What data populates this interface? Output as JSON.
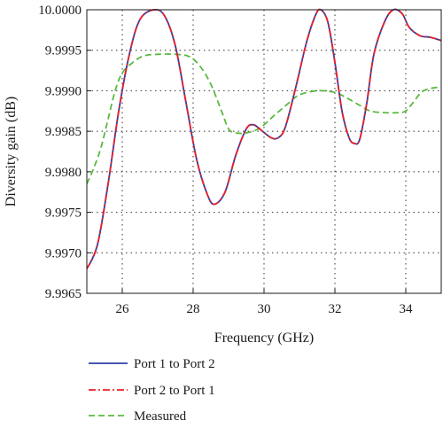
{
  "chart_data": {
    "type": "line",
    "xlabel": "Frequency (GHz)",
    "ylabel": "Diversity gain (dB)",
    "xlim": [
      25,
      35
    ],
    "ylim": [
      9.9965,
      10.0
    ],
    "x_ticks": [
      26,
      28,
      30,
      32,
      34
    ],
    "x_tick_labels": [
      "26",
      "28",
      "30",
      "32",
      "34"
    ],
    "y_ticks": [
      9.9965,
      9.997,
      9.9975,
      9.998,
      9.9985,
      9.999,
      9.9995,
      10.0
    ],
    "y_tick_labels": [
      "9.9965",
      "9.9970",
      "9.9975",
      "9.9980",
      "9.9985",
      "9.9990",
      "9.9995",
      "10.0000"
    ],
    "grid": "dotted",
    "legend_position": "below",
    "series": [
      {
        "name": "Port 1 to Port 2",
        "color": "#2b3fa6",
        "style": "solid",
        "points": [
          [
            25.0,
            9.9968
          ],
          [
            25.3,
            9.9971
          ],
          [
            25.6,
            9.99785
          ],
          [
            25.9,
            9.99875
          ],
          [
            26.2,
            9.99945
          ],
          [
            26.5,
            9.99988
          ],
          [
            26.9,
            10.0
          ],
          [
            27.2,
            9.99992
          ],
          [
            27.5,
            9.99955
          ],
          [
            27.8,
            9.99885
          ],
          [
            28.1,
            9.99815
          ],
          [
            28.4,
            9.99772
          ],
          [
            28.6,
            9.9976
          ],
          [
            28.9,
            9.99775
          ],
          [
            29.2,
            9.9982
          ],
          [
            29.5,
            9.99853
          ],
          [
            29.7,
            9.99858
          ],
          [
            29.9,
            9.99852
          ],
          [
            30.2,
            9.99842
          ],
          [
            30.4,
            9.99842
          ],
          [
            30.6,
            9.99855
          ],
          [
            30.9,
            9.99905
          ],
          [
            31.2,
            9.9996
          ],
          [
            31.45,
            9.99993
          ],
          [
            31.6,
            10.0
          ],
          [
            31.8,
            9.99985
          ],
          [
            32.0,
            9.99935
          ],
          [
            32.2,
            9.99875
          ],
          [
            32.4,
            9.99842
          ],
          [
            32.55,
            9.99835
          ],
          [
            32.7,
            9.9984
          ],
          [
            32.9,
            9.99885
          ],
          [
            33.1,
            9.99945
          ],
          [
            33.4,
            9.99985
          ],
          [
            33.65,
            10.0
          ],
          [
            33.9,
            9.99995
          ],
          [
            34.1,
            9.99978
          ],
          [
            34.4,
            9.99968
          ],
          [
            34.7,
            9.99966
          ],
          [
            35.0,
            9.99962
          ]
        ]
      },
      {
        "name": "Port 2 to Port 1",
        "color": "#e8202a",
        "style": "dash-dot",
        "points": [
          [
            25.0,
            9.9968
          ],
          [
            25.3,
            9.9971
          ],
          [
            25.6,
            9.99785
          ],
          [
            25.9,
            9.99875
          ],
          [
            26.2,
            9.99945
          ],
          [
            26.5,
            9.99988
          ],
          [
            26.9,
            10.0
          ],
          [
            27.2,
            9.99992
          ],
          [
            27.5,
            9.99955
          ],
          [
            27.8,
            9.99885
          ],
          [
            28.1,
            9.99815
          ],
          [
            28.4,
            9.99772
          ],
          [
            28.6,
            9.9976
          ],
          [
            28.9,
            9.99775
          ],
          [
            29.2,
            9.9982
          ],
          [
            29.5,
            9.99853
          ],
          [
            29.7,
            9.99858
          ],
          [
            29.9,
            9.99852
          ],
          [
            30.2,
            9.99842
          ],
          [
            30.4,
            9.99842
          ],
          [
            30.6,
            9.99855
          ],
          [
            30.9,
            9.99905
          ],
          [
            31.2,
            9.9996
          ],
          [
            31.45,
            9.99993
          ],
          [
            31.6,
            10.0
          ],
          [
            31.8,
            9.99985
          ],
          [
            32.0,
            9.99935
          ],
          [
            32.2,
            9.99875
          ],
          [
            32.4,
            9.99842
          ],
          [
            32.55,
            9.99835
          ],
          [
            32.7,
            9.9984
          ],
          [
            32.9,
            9.99885
          ],
          [
            33.1,
            9.99945
          ],
          [
            33.4,
            9.99985
          ],
          [
            33.65,
            10.0
          ],
          [
            33.9,
            9.99995
          ],
          [
            34.1,
            9.99978
          ],
          [
            34.4,
            9.99968
          ],
          [
            34.7,
            9.99966
          ],
          [
            35.0,
            9.99962
          ]
        ]
      },
      {
        "name": "Measured",
        "color": "#5ab93f",
        "style": "dashed",
        "points": [
          [
            25.0,
            9.99785
          ],
          [
            25.2,
            9.99805
          ],
          [
            25.4,
            9.9983
          ],
          [
            25.6,
            9.99865
          ],
          [
            25.8,
            9.999
          ],
          [
            26.0,
            9.99922
          ],
          [
            26.3,
            9.99935
          ],
          [
            26.6,
            9.99943
          ],
          [
            27.0,
            9.99945
          ],
          [
            27.5,
            9.99945
          ],
          [
            27.9,
            9.99942
          ],
          [
            28.2,
            9.9993
          ],
          [
            28.5,
            9.99908
          ],
          [
            28.8,
            9.99875
          ],
          [
            29.0,
            9.99853
          ],
          [
            29.2,
            9.99848
          ],
          [
            29.5,
            9.99848
          ],
          [
            29.8,
            9.99852
          ],
          [
            30.0,
            9.99858
          ],
          [
            30.3,
            9.9987
          ],
          [
            30.7,
            9.99885
          ],
          [
            31.0,
            9.99895
          ],
          [
            31.5,
            9.999
          ],
          [
            32.0,
            9.99898
          ],
          [
            32.3,
            9.99892
          ],
          [
            32.7,
            9.99882
          ],
          [
            33.0,
            9.99875
          ],
          [
            33.4,
            9.99873
          ],
          [
            33.8,
            9.99873
          ],
          [
            34.0,
            9.99875
          ],
          [
            34.2,
            9.99885
          ],
          [
            34.5,
            9.999
          ],
          [
            35.0,
            9.99905
          ]
        ]
      }
    ]
  }
}
